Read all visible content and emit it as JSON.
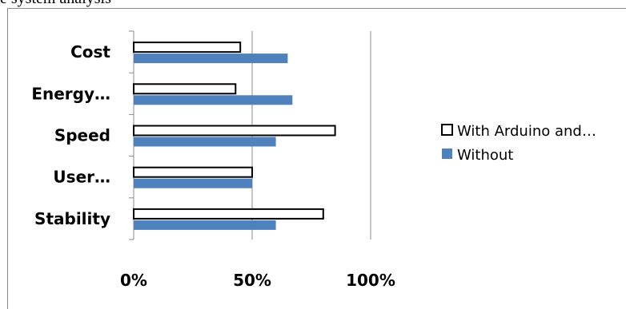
{
  "page": {
    "cropped_title": "e system analysis"
  },
  "chart_data": {
    "type": "bar",
    "orientation": "horizontal",
    "title": "",
    "xlabel": "",
    "ylabel": "",
    "categories": [
      "Cost",
      "Energy…",
      "Speed",
      "User…",
      "Stability"
    ],
    "series": [
      {
        "name": "With Arduino and…",
        "values": [
          45,
          43,
          85,
          50,
          80
        ],
        "color": "#ffffff",
        "stroke": "#000000"
      },
      {
        "name": "Without",
        "values": [
          65,
          67,
          60,
          50,
          60
        ],
        "color": "#4f81bd",
        "stroke": "#4f81bd"
      }
    ],
    "xlim": [
      0,
      100
    ],
    "x_ticks": [
      "0%",
      "50%",
      "100%"
    ],
    "grid": true,
    "legend_position": "right"
  }
}
